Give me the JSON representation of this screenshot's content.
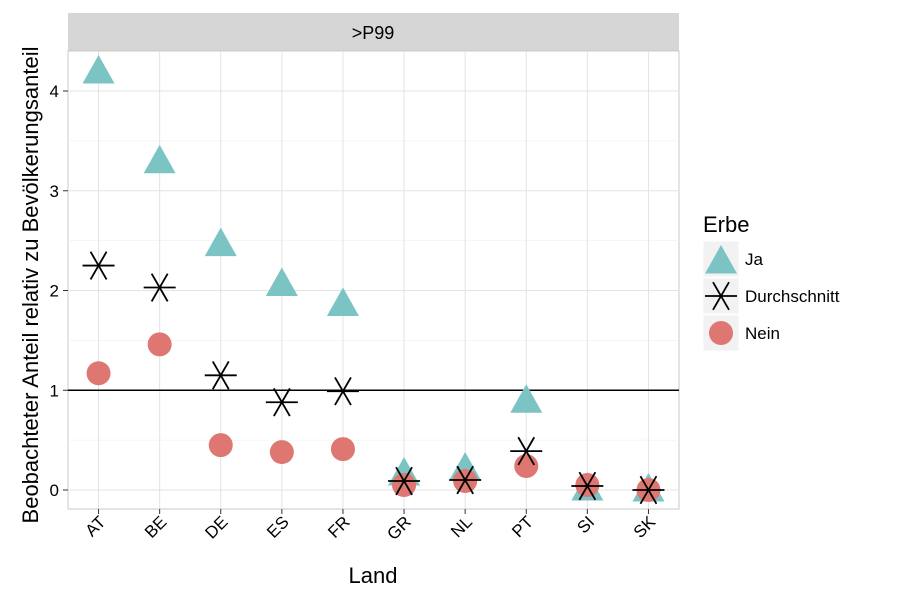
{
  "chart_data": {
    "type": "scatter",
    "facet_label": ">P99",
    "xlabel": "Land",
    "ylabel": "Beobachteter Anteil relativ zu Bevölkerungsanteil",
    "categories": [
      "AT",
      "BE",
      "DE",
      "ES",
      "FR",
      "GR",
      "NL",
      "PT",
      "SI",
      "SK"
    ],
    "ylim": [
      -0.2,
      4.4
    ],
    "yticks": [
      0,
      1,
      2,
      3,
      4
    ],
    "reference_line": 1,
    "grid": true,
    "legend": {
      "title": "Erbe",
      "placement": "right",
      "entries": [
        {
          "label": "Ja",
          "shape": "triangle",
          "color": "#7cc4c4"
        },
        {
          "label": "Durchschnitt",
          "shape": "asterisk",
          "color": "#000000"
        },
        {
          "label": "Nein",
          "shape": "circle",
          "color": "#de7771"
        }
      ]
    },
    "series": [
      {
        "name": "Ja",
        "shape": "triangle",
        "color": "#7cc4c4",
        "values": [
          4.2,
          3.3,
          2.47,
          2.07,
          1.87,
          0.17,
          0.22,
          0.9,
          0.02,
          0.01
        ]
      },
      {
        "name": "Nein",
        "shape": "circle",
        "color": "#de7771",
        "values": [
          1.17,
          1.46,
          0.45,
          0.38,
          0.41,
          0.05,
          0.09,
          0.24,
          0.05,
          0.0
        ]
      },
      {
        "name": "Durchschnitt",
        "shape": "asterisk",
        "color": "#000000",
        "values": [
          2.25,
          2.03,
          1.15,
          0.88,
          0.99,
          0.09,
          0.1,
          0.39,
          0.04,
          0.0
        ]
      }
    ]
  }
}
